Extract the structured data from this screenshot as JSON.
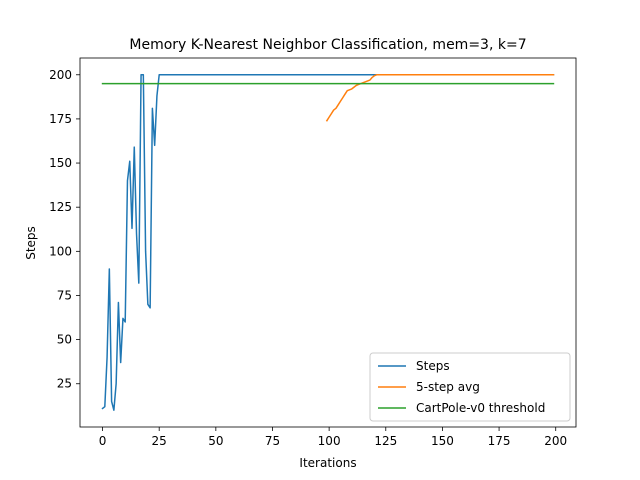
{
  "chart_data": {
    "type": "line",
    "title": "Memory K-Nearest Neighbor Classification, mem=3, k=7",
    "xlabel": "Iterations",
    "ylabel": "Steps",
    "xlim": [
      -9.95,
      208.95
    ],
    "ylim": [
      0.5,
      209.5
    ],
    "xticks": [
      0,
      25,
      50,
      75,
      100,
      125,
      150,
      175,
      200
    ],
    "yticks": [
      25,
      50,
      75,
      100,
      125,
      150,
      175,
      200
    ],
    "grid": false,
    "legend_position": "lower-right",
    "series": [
      {
        "name": "Steps",
        "color": "#1f77b4",
        "x": [
          0,
          1,
          2,
          3,
          4,
          5,
          6,
          7,
          8,
          9,
          10,
          11,
          12,
          13,
          14,
          15,
          16,
          17,
          18,
          19,
          20,
          21,
          22,
          23,
          24,
          25,
          30,
          40,
          50,
          60,
          70,
          80,
          90,
          100,
          110,
          120,
          130,
          140,
          150,
          160,
          170,
          180,
          190,
          199
        ],
        "y": [
          11,
          12,
          40,
          90,
          15,
          10,
          25,
          71,
          37,
          62,
          60,
          140,
          151,
          113,
          159,
          110,
          82,
          200,
          200,
          100,
          70,
          68,
          181,
          160,
          188,
          200,
          200,
          200,
          200,
          200,
          200,
          200,
          200,
          200,
          200,
          200,
          200,
          200,
          200,
          200,
          200,
          200,
          200,
          200
        ]
      },
      {
        "name": "5-step avg",
        "color": "#ff7f0e",
        "x": [
          99,
          100,
          101,
          102,
          103,
          104,
          105,
          106,
          107,
          108,
          109,
          110,
          111,
          112,
          113,
          114,
          115,
          116,
          117,
          118,
          119,
          120,
          121,
          122,
          123,
          125,
          130,
          140,
          150,
          160,
          170,
          180,
          190,
          199
        ],
        "y": [
          174,
          176,
          178,
          180,
          181,
          183,
          185,
          187,
          189,
          191,
          191.5,
          192,
          193,
          194,
          194.5,
          195,
          195.5,
          196,
          196.5,
          197,
          198.5,
          199.5,
          200,
          200,
          200,
          200,
          200,
          200,
          200,
          200,
          200,
          200,
          200,
          200
        ]
      },
      {
        "name": "CartPole-v0 threshold",
        "color": "#2ca02c",
        "x": [
          0,
          199
        ],
        "y": [
          195,
          195
        ]
      }
    ]
  }
}
